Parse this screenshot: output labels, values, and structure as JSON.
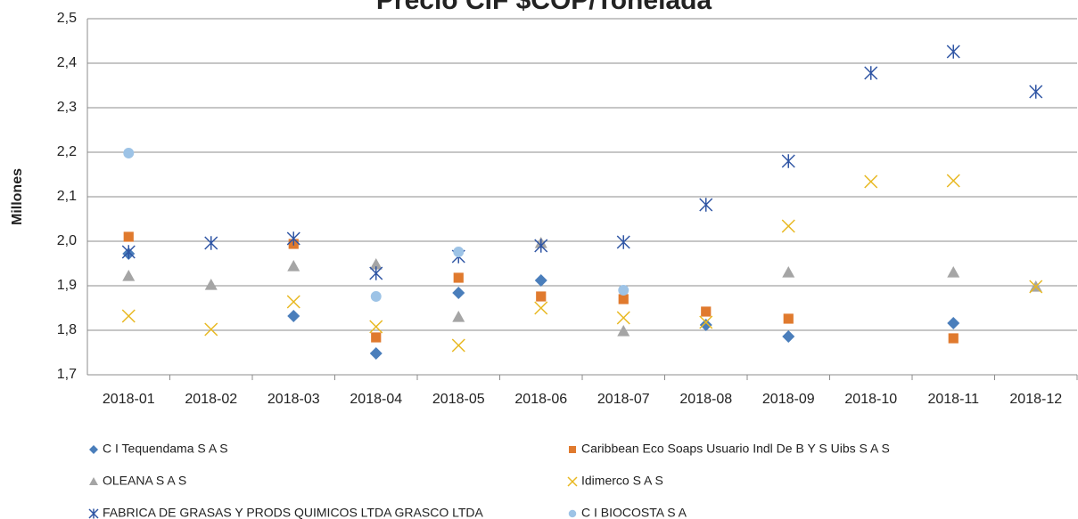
{
  "chart_data": {
    "type": "scatter",
    "title": "Precio CIF $COP/Tonelada",
    "y_label": "Millones",
    "categories": [
      "2018-01",
      "2018-02",
      "2018-03",
      "2018-04",
      "2018-05",
      "2018-06",
      "2018-07",
      "2018-08",
      "2018-09",
      "2018-10",
      "2018-11",
      "2018-12"
    ],
    "ylim": [
      1.7,
      2.5
    ],
    "yticks": [
      {
        "value": 1.7,
        "label": "1,7"
      },
      {
        "value": 1.8,
        "label": "1,8"
      },
      {
        "value": 1.9,
        "label": "1,9"
      },
      {
        "value": 2.0,
        "label": "2,0"
      },
      {
        "value": 2.1,
        "label": "2,1"
      },
      {
        "value": 2.2,
        "label": "2,2"
      },
      {
        "value": 2.3,
        "label": "2,3"
      },
      {
        "value": 2.4,
        "label": "2,4"
      },
      {
        "value": 2.5,
        "label": "2,5"
      }
    ],
    "grid": true,
    "series": [
      {
        "name": "C I Tequendama S A S",
        "color": "#4a7ebb",
        "marker": "diamond",
        "values": [
          1.972,
          null,
          1.832,
          1.748,
          1.884,
          1.912,
          null,
          1.812,
          1.786,
          null,
          1.816,
          null
        ]
      },
      {
        "name": "Caribbean Eco Soaps Usuario Indl De B Y S Uibs S A S",
        "color": "#e07a2e",
        "marker": "square",
        "values": [
          2.01,
          null,
          1.994,
          1.784,
          1.918,
          1.876,
          1.87,
          1.842,
          1.826,
          null,
          1.782,
          null
        ]
      },
      {
        "name": "OLEANA S A S",
        "color": "#a5a5a5",
        "marker": "triangle",
        "values": [
          1.922,
          1.902,
          1.944,
          1.948,
          1.83,
          1.996,
          1.798,
          null,
          1.93,
          null,
          1.93,
          1.898
        ]
      },
      {
        "name": "Idimerco S A S",
        "color": "#e8b820",
        "marker": "x",
        "values": [
          1.832,
          1.802,
          1.864,
          1.808,
          1.766,
          1.85,
          1.828,
          1.818,
          2.034,
          2.134,
          2.136,
          1.898
        ]
      },
      {
        "name": "FABRICA DE GRASAS Y PRODS QUIMICOS LTDA GRASCO LTDA",
        "color": "#2f55a4",
        "marker": "star",
        "values": [
          1.976,
          1.996,
          2.006,
          1.928,
          1.966,
          1.99,
          1.998,
          2.082,
          2.18,
          2.378,
          2.426,
          2.336
        ]
      },
      {
        "name": "C I BIOCOSTA S A",
        "color": "#9dc3e6",
        "marker": "circle",
        "values": [
          2.198,
          null,
          null,
          1.876,
          1.976,
          null,
          1.89,
          null,
          null,
          null,
          null,
          null
        ]
      }
    ]
  }
}
